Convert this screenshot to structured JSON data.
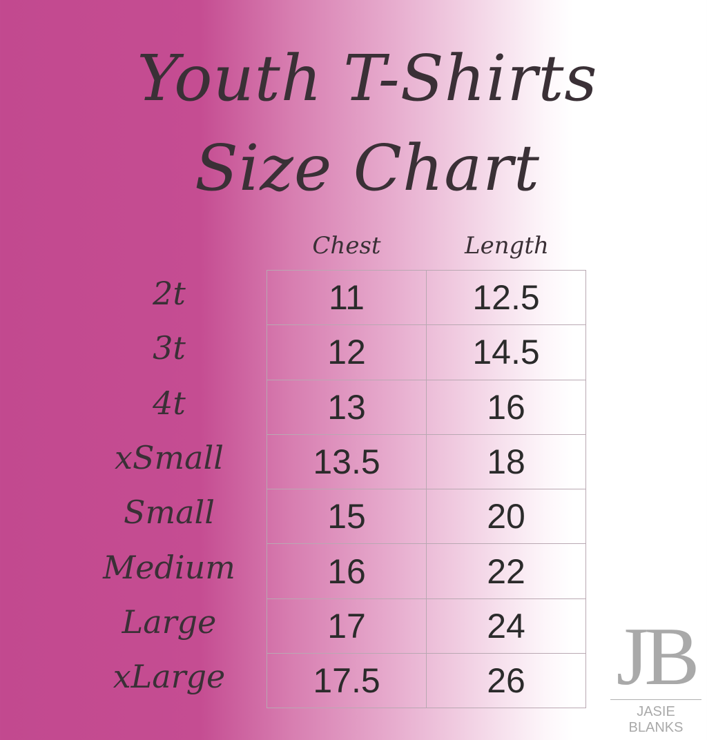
{
  "title": {
    "line1": "Youth T-Shirts",
    "line2": "Size Chart"
  },
  "columns": [
    "Chest",
    "Length"
  ],
  "rows": [
    {
      "size": "2t",
      "chest": "11",
      "length": "12.5"
    },
    {
      "size": "3t",
      "chest": "12",
      "length": "14.5"
    },
    {
      "size": "4t",
      "chest": "13",
      "length": "16"
    },
    {
      "size": "xSmall",
      "chest": "13.5",
      "length": "18"
    },
    {
      "size": "Small",
      "chest": "15",
      "length": "20"
    },
    {
      "size": "Medium",
      "chest": "16",
      "length": "22"
    },
    {
      "size": "Large",
      "chest": "17",
      "length": "24"
    },
    {
      "size": "xLarge",
      "chest": "17.5",
      "length": "26"
    }
  ],
  "logo": {
    "mark": "JB",
    "name": "JASIE BLANKS"
  },
  "colors": {
    "background_left": "#c2498f",
    "background_right": "#ffffff",
    "text": "#2b2b2b",
    "logo": "#a9a9a9"
  }
}
